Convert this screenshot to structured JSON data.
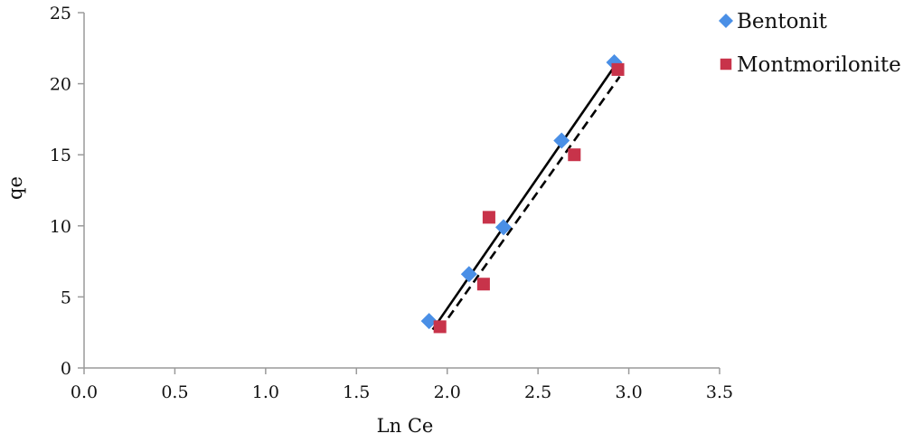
{
  "chart_data": {
    "type": "scatter",
    "xlabel": "Ln Ce",
    "ylabel": "qe",
    "xlim": [
      0,
      3.5
    ],
    "ylim": [
      0,
      25
    ],
    "xticks": [
      "0.0",
      "0.5",
      "1.0",
      "1.5",
      "2.0",
      "2.5",
      "3.0",
      "3.5"
    ],
    "yticks": [
      "0",
      "5",
      "10",
      "15",
      "20",
      "25"
    ],
    "grid": false,
    "legend_position": "top-right",
    "series": [
      {
        "name": "Bentonit",
        "marker": "diamond",
        "color": "#4a8fe6",
        "trendline": "solid",
        "points": [
          {
            "x": 1.9,
            "y": 3.3
          },
          {
            "x": 2.12,
            "y": 6.6
          },
          {
            "x": 2.31,
            "y": 9.9
          },
          {
            "x": 2.63,
            "y": 16.0
          },
          {
            "x": 2.92,
            "y": 21.5
          }
        ],
        "fit": [
          [
            1.92,
            2.7
          ],
          [
            2.92,
            21.2
          ]
        ]
      },
      {
        "name": "Montmorilonite",
        "marker": "square",
        "color": "#c8334a",
        "trendline": "dashed",
        "points": [
          {
            "x": 1.96,
            "y": 2.9
          },
          {
            "x": 2.2,
            "y": 5.9
          },
          {
            "x": 2.23,
            "y": 10.6
          },
          {
            "x": 2.7,
            "y": 15.0
          },
          {
            "x": 2.94,
            "y": 21.0
          }
        ],
        "fit": [
          [
            1.96,
            2.7
          ],
          [
            2.95,
            20.5
          ]
        ]
      }
    ]
  }
}
